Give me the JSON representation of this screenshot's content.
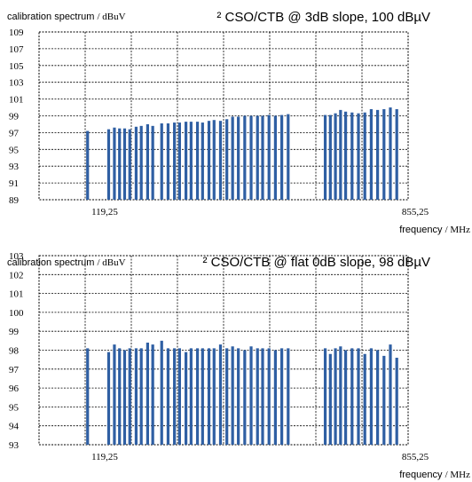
{
  "chart_data": [
    {
      "type": "bar",
      "title": "² CSO/CTB @ 3dB slope, 100 dBµV",
      "ylabel_prefix": "calibration spectrum",
      "ylabel_unit": "/ dBuV",
      "xlabel_prefix": "frequency",
      "xlabel_unit": "/ MHz",
      "ylim": [
        89,
        109
      ],
      "yticks": [
        "109",
        "107",
        "105",
        "103",
        "101",
        "99",
        "97",
        "95",
        "93",
        "91",
        "89"
      ],
      "xlim": [
        0,
        1000
      ],
      "xtick_labels": [
        {
          "x": 119.25,
          "label": "119,25"
        },
        {
          "x": 855.25,
          "label": "855,25"
        }
      ],
      "grid": true,
      "bar_color": "#2f5fa3",
      "x": [
        96,
        129,
        138,
        146,
        154,
        162,
        172,
        180,
        190,
        198,
        212,
        222,
        232,
        240,
        250,
        258,
        268,
        276,
        286,
        294,
        304,
        314,
        323,
        332,
        342,
        352,
        362,
        370,
        380,
        390,
        400,
        410,
        468,
        476,
        484,
        492,
        500,
        510,
        520,
        530,
        540,
        550,
        560,
        570,
        580
      ],
      "values": [
        97.2,
        97.4,
        97.6,
        97.5,
        97.5,
        97.4,
        97.7,
        97.8,
        98,
        97.8,
        98.1,
        98.1,
        98.2,
        98.2,
        98.3,
        98.3,
        98.3,
        98.2,
        98.4,
        98.5,
        98.4,
        98.6,
        98.9,
        98.9,
        99,
        99,
        99,
        99,
        99.1,
        99,
        99.1,
        99.2,
        99.1,
        99.1,
        99.3,
        99.7,
        99.5,
        99.4,
        99.3,
        99.4,
        99.8,
        99.7,
        99.8,
        100,
        99.8
      ]
    },
    {
      "type": "bar",
      "title": "² CSO/CTB @ flat 0dB slope, 98 dBµV",
      "ylabel_prefix": "calibration spectrum",
      "ylabel_unit": "/ dBuV",
      "xlabel_prefix": "frequency",
      "xlabel_unit": "/ MHz",
      "ylim": [
        93,
        103
      ],
      "yticks": [
        "103",
        "102",
        "101",
        "100",
        "99",
        "98",
        "97",
        "96",
        "95",
        "94",
        "93"
      ],
      "xlim": [
        0,
        1000
      ],
      "xtick_labels": [
        {
          "x": 119.25,
          "label": "119,25"
        },
        {
          "x": 855.25,
          "label": "855,25"
        }
      ],
      "grid": true,
      "bar_color": "#2f5fa3",
      "x": [
        96,
        129,
        138,
        146,
        154,
        162,
        172,
        180,
        190,
        198,
        212,
        222,
        232,
        240,
        250,
        258,
        268,
        276,
        286,
        294,
        304,
        314,
        323,
        332,
        342,
        352,
        362,
        370,
        380,
        390,
        400,
        410,
        468,
        476,
        484,
        492,
        500,
        510,
        520,
        530,
        540,
        550,
        560,
        570,
        580
      ],
      "values": [
        98.1,
        97.9,
        98.3,
        98.1,
        98,
        98.1,
        98.1,
        98.1,
        98.4,
        98.3,
        98.5,
        98.1,
        98.1,
        98.1,
        97.9,
        98.1,
        98.1,
        98.1,
        98.1,
        98.1,
        98.3,
        98.1,
        98.2,
        98.1,
        98,
        98.2,
        98.1,
        98.1,
        98.1,
        98,
        98.1,
        98.1,
        98.1,
        97.8,
        98.1,
        98.2,
        98,
        98.1,
        98.1,
        97.8,
        98.1,
        98,
        97.7,
        98.3,
        97.6
      ]
    }
  ]
}
